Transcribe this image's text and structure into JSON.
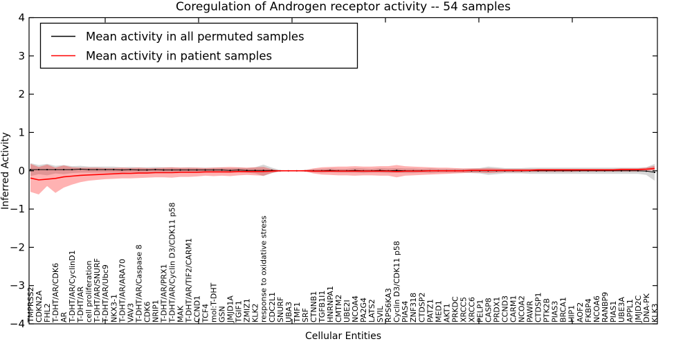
{
  "figure": {
    "background": "#ffffff",
    "frame_color": "#000000"
  },
  "chart_data": {
    "type": "line",
    "title": "Coregulation of Androgen receptor activity -- 54 samples",
    "xlabel": "Cellular Entities",
    "ylabel": "Inferred Activity",
    "ylim": [
      -4,
      4
    ],
    "y_ticks": [
      4,
      3,
      2,
      1,
      0,
      -1,
      -2,
      -3,
      -4
    ],
    "y_tick_labels": [
      "4",
      "3",
      "2",
      "1",
      "0",
      "−1",
      "−2",
      "−3",
      "−4"
    ],
    "grid": false,
    "legend_position": "upper left",
    "categories": [
      "TMPRSS2",
      "CDKN2A",
      "FHL2",
      "T-DHT/AR/CDK6",
      "AR",
      "T-DHT/AR/CyclinD1",
      "T-DHT/AR",
      "cell proliferation",
      "T-DHT/AR/SNURF",
      "T-DHT/AR/Ubc9",
      "NKX3-1",
      "T-DHT/AR/ARA70",
      "VAV3",
      "T-DHT/AR/Caspase 8",
      "CDK6",
      "NRIP1",
      "T-DHT/AR/PRX1",
      "T-DHT/AR/Cyclin D3/CDK11 p58",
      "MAK",
      "T-DHT/AR/TIF2/CARM1",
      "CCND1",
      "TCF4",
      "mol:T-DHT",
      "GSN",
      "JMJD1A",
      "TGIF1",
      "ZMIZ1",
      "KLK2",
      "response to oxidative stress",
      "CDC2L1",
      "SNURF",
      "UBA3",
      "TMF1",
      "SRF",
      "CTNNB1",
      "TGFB1I1",
      "HNRNPA1",
      "CMTM2",
      "UBE2I",
      "NCOA4",
      "PA2G4",
      "LATS2",
      "SVIL",
      "RPS6KA3",
      "Cyclin D3/CDK11 p58",
      "PIAS4",
      "ZNF318",
      "CTDSP2",
      "PATZ1",
      "MED1",
      "AKT1",
      "PRKDC",
      "XRCC5",
      "XRCC6",
      "PELP1",
      "CASP8",
      "PRDX1",
      "CCND3",
      "CARM1",
      "NCOA2",
      "PAWR",
      "CTDSP1",
      "PTK2B",
      "PIAS3",
      "BRCA1",
      "HIP1",
      "AOF2",
      "FKBP4",
      "NCOA6",
      "RANBP9",
      "PIAS1",
      "UBE3A",
      "APPL1",
      "JMJD2C",
      "DNA-PK",
      "KLK3"
    ],
    "series": [
      {
        "name": "Mean activity in all permuted samples",
        "color": "#000000",
        "band_color": "rgba(0,0,0,0.16)",
        "values": [
          0.03,
          0.03,
          0.03,
          0.03,
          0.03,
          0.03,
          0.04,
          0.03,
          0.03,
          0.03,
          0.03,
          0.02,
          0.03,
          0.02,
          0.02,
          0.03,
          0.02,
          0.02,
          0.02,
          0.02,
          0.02,
          0.02,
          0.02,
          0.02,
          0.01,
          0.02,
          0.01,
          0.01,
          0.01,
          0.01,
          0.0,
          0.0,
          0.0,
          0.0,
          0.0,
          0.0,
          0.01,
          0.0,
          0.0,
          0.01,
          0.0,
          0.0,
          0.01,
          0.0,
          0.01,
          0.0,
          0.0,
          0.0,
          0.0,
          0.0,
          0.0,
          0.0,
          0.0,
          0.0,
          0.0,
          0.0,
          0.0,
          0.0,
          0.0,
          0.0,
          0.0,
          0.0,
          0.0,
          0.0,
          0.0,
          0.0,
          0.0,
          0.0,
          0.0,
          0.0,
          0.0,
          0.0,
          0.0,
          0.0,
          -0.01,
          -0.04
        ],
        "band_halfwidth": [
          0.17,
          0.12,
          0.15,
          0.1,
          0.12,
          0.09,
          0.09,
          0.08,
          0.08,
          0.08,
          0.08,
          0.07,
          0.07,
          0.07,
          0.07,
          0.07,
          0.07,
          0.07,
          0.06,
          0.07,
          0.06,
          0.06,
          0.06,
          0.06,
          0.06,
          0.06,
          0.06,
          0.08,
          0.15,
          0.07,
          0.02,
          0.01,
          0.01,
          0.02,
          0.04,
          0.05,
          0.05,
          0.05,
          0.05,
          0.06,
          0.06,
          0.05,
          0.06,
          0.06,
          0.06,
          0.06,
          0.06,
          0.05,
          0.06,
          0.05,
          0.05,
          0.05,
          0.05,
          0.06,
          0.07,
          0.11,
          0.09,
          0.07,
          0.07,
          0.07,
          0.08,
          0.08,
          0.08,
          0.08,
          0.08,
          0.08,
          0.08,
          0.08,
          0.08,
          0.08,
          0.08,
          0.08,
          0.08,
          0.08,
          0.1,
          0.22
        ]
      },
      {
        "name": "Mean activity in patient samples",
        "color": "#ff0000",
        "band_color": "rgba(255,0,0,0.30)",
        "values": [
          -0.19,
          -0.24,
          -0.22,
          -0.2,
          -0.16,
          -0.14,
          -0.12,
          -0.11,
          -0.1,
          -0.09,
          -0.08,
          -0.07,
          -0.07,
          -0.06,
          -0.06,
          -0.05,
          -0.05,
          -0.05,
          -0.04,
          -0.04,
          -0.04,
          -0.03,
          -0.03,
          -0.03,
          -0.03,
          -0.02,
          -0.02,
          -0.02,
          -0.02,
          -0.01,
          0.0,
          0.0,
          0.0,
          0.0,
          -0.01,
          -0.01,
          -0.01,
          -0.01,
          -0.01,
          -0.01,
          -0.01,
          -0.01,
          -0.01,
          -0.01,
          -0.02,
          -0.01,
          -0.01,
          -0.01,
          0.0,
          0.0,
          0.0,
          0.0,
          0.0,
          0.01,
          0.01,
          0.01,
          0.01,
          0.01,
          0.01,
          0.01,
          0.01,
          0.02,
          0.02,
          0.02,
          0.02,
          0.02,
          0.02,
          0.02,
          0.02,
          0.02,
          0.02,
          0.03,
          0.03,
          0.03,
          0.04,
          0.06
        ],
        "band_upper": [
          0.18,
          0.1,
          0.16,
          0.08,
          0.14,
          0.09,
          0.08,
          0.08,
          0.08,
          0.07,
          0.07,
          0.08,
          0.07,
          0.08,
          0.07,
          0.07,
          0.08,
          0.09,
          0.08,
          0.08,
          0.08,
          0.07,
          0.08,
          0.09,
          0.1,
          0.09,
          0.08,
          0.09,
          0.1,
          0.04,
          0.01,
          0.01,
          0.01,
          0.02,
          0.06,
          0.09,
          0.1,
          0.11,
          0.11,
          0.12,
          0.11,
          0.11,
          0.12,
          0.12,
          0.15,
          0.12,
          0.11,
          0.1,
          0.09,
          0.08,
          0.08,
          0.07,
          0.06,
          0.06,
          0.06,
          0.07,
          0.06,
          0.05,
          0.05,
          0.05,
          0.05,
          0.05,
          0.05,
          0.05,
          0.05,
          0.05,
          0.05,
          0.05,
          0.05,
          0.05,
          0.05,
          0.06,
          0.06,
          0.06,
          0.08,
          0.13
        ],
        "band_lower": [
          -0.55,
          -0.62,
          -0.4,
          -0.58,
          -0.44,
          -0.36,
          -0.3,
          -0.26,
          -0.24,
          -0.22,
          -0.21,
          -0.2,
          -0.2,
          -0.19,
          -0.18,
          -0.17,
          -0.17,
          -0.18,
          -0.16,
          -0.16,
          -0.15,
          -0.13,
          -0.14,
          -0.13,
          -0.14,
          -0.12,
          -0.11,
          -0.12,
          -0.13,
          -0.06,
          -0.01,
          -0.01,
          -0.01,
          -0.02,
          -0.07,
          -0.1,
          -0.11,
          -0.12,
          -0.12,
          -0.13,
          -0.12,
          -0.12,
          -0.13,
          -0.13,
          -0.17,
          -0.13,
          -0.12,
          -0.11,
          -0.1,
          -0.09,
          -0.08,
          -0.07,
          -0.06,
          -0.05,
          -0.05,
          -0.06,
          -0.05,
          -0.04,
          -0.04,
          -0.04,
          -0.03,
          -0.03,
          -0.03,
          -0.03,
          -0.03,
          -0.03,
          -0.02,
          -0.02,
          -0.02,
          -0.02,
          -0.02,
          -0.02,
          -0.02,
          -0.02,
          -0.01,
          0.02
        ]
      }
    ]
  }
}
